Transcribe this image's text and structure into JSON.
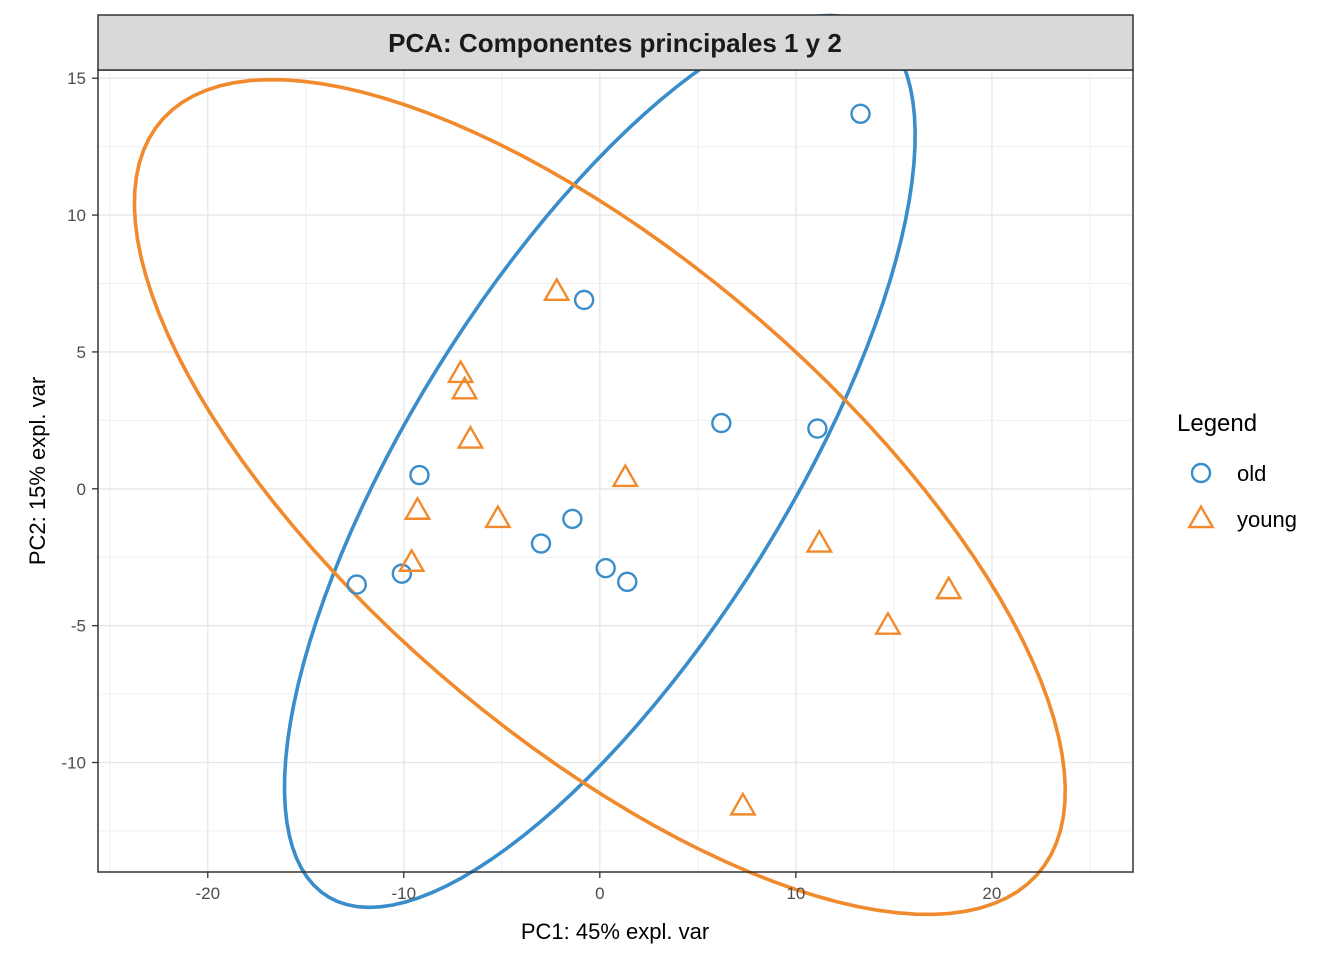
{
  "chart_data": {
    "type": "scatter",
    "title": "PCA: Componentes principales 1 y 2",
    "xlabel": "PC1: 45% expl. var",
    "ylabel": "PC2: 15% expl. var",
    "xlim": [
      -25.6,
      27.2
    ],
    "ylim": [
      -14.0,
      15.3
    ],
    "x_ticks": [
      -20,
      -10,
      0,
      10,
      20
    ],
    "x_tick_labels": [
      "-20",
      "-10",
      "0",
      "10",
      "20"
    ],
    "y_ticks": [
      -10,
      -5,
      0,
      5,
      10,
      15
    ],
    "y_tick_labels": [
      "-10",
      "-5",
      "0",
      "5",
      "10",
      "15"
    ],
    "grid": true,
    "legend": {
      "title": "Legend",
      "placement": "right"
    },
    "series": [
      {
        "name": "old",
        "marker": "circle",
        "color": "#3a8dcb",
        "points": [
          {
            "x": 13.3,
            "y": 13.7
          },
          {
            "x": -0.8,
            "y": 6.9
          },
          {
            "x": 6.2,
            "y": 2.4
          },
          {
            "x": 11.1,
            "y": 2.2
          },
          {
            "x": -9.2,
            "y": 0.5
          },
          {
            "x": -1.4,
            "y": -1.1
          },
          {
            "x": -3.0,
            "y": -2.0
          },
          {
            "x": 0.3,
            "y": -2.9
          },
          {
            "x": 1.4,
            "y": -3.4
          },
          {
            "x": -10.1,
            "y": -3.1
          },
          {
            "x": -12.4,
            "y": -3.5
          }
        ],
        "ellipse": {
          "center": [
            0.0,
            1.0
          ],
          "semi_axes": [
            21.3,
            8.4
          ],
          "angle_deg": 45.5
        }
      },
      {
        "name": "young",
        "marker": "triangle",
        "color": "#f08a2c",
        "points": [
          {
            "x": -2.2,
            "y": 7.2
          },
          {
            "x": -7.1,
            "y": 4.2
          },
          {
            "x": -6.9,
            "y": 3.6
          },
          {
            "x": -6.6,
            "y": 1.8
          },
          {
            "x": 1.3,
            "y": 0.4
          },
          {
            "x": -9.3,
            "y": -0.8
          },
          {
            "x": -5.2,
            "y": -1.1
          },
          {
            "x": -9.6,
            "y": -2.7
          },
          {
            "x": 11.2,
            "y": -2.0
          },
          {
            "x": 17.8,
            "y": -3.7
          },
          {
            "x": 14.7,
            "y": -5.0
          },
          {
            "x": 7.3,
            "y": -11.6
          }
        ],
        "ellipse": {
          "center": [
            0.0,
            -0.3
          ],
          "semi_axes": [
            26.5,
            9.7
          ],
          "angle_deg": -28.5
        }
      }
    ]
  }
}
